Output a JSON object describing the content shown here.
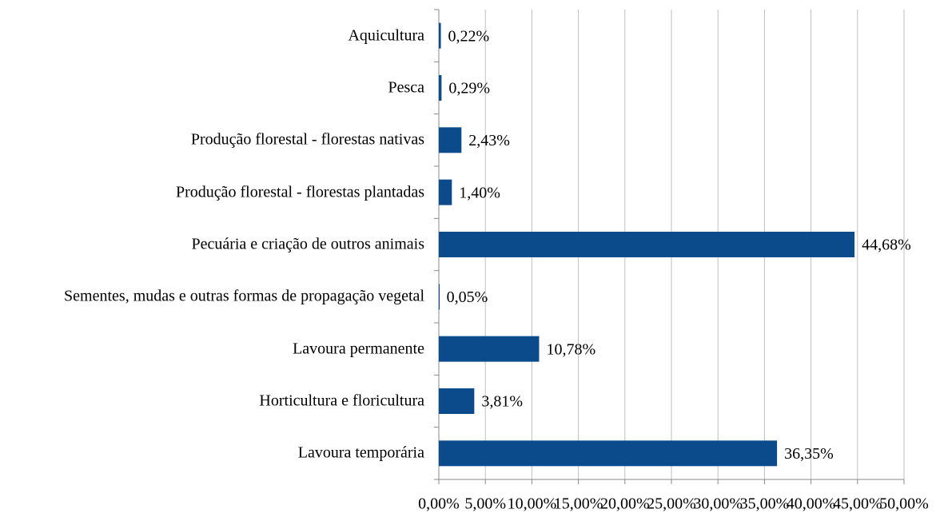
{
  "chart_data": {
    "type": "bar",
    "orientation": "horizontal",
    "categories": [
      "Aquicultura",
      "Pesca",
      "Produção florestal - florestas nativas",
      "Produção florestal - florestas plantadas",
      "Pecuária e criação de outros animais",
      "Sementes, mudas e outras formas de propagação vegetal",
      "Lavoura permanente",
      "Horticultura e floricultura",
      "Lavoura temporária"
    ],
    "values": [
      0.22,
      0.29,
      2.43,
      1.4,
      44.68,
      0.05,
      10.78,
      3.81,
      36.35
    ],
    "value_labels": [
      "0,22%",
      "0,29%",
      "2,43%",
      "1,40%",
      "44,68%",
      "0,05%",
      "10,78%",
      "3,81%",
      "36,35%"
    ],
    "color": "#0b4a8b",
    "xlim": [
      0,
      50
    ],
    "xticks": [
      {
        "value": 0,
        "label": "0,00%"
      },
      {
        "value": 5,
        "label": "5,00%"
      },
      {
        "value": 10,
        "label": "10,00%"
      },
      {
        "value": 15,
        "label": "15,00%"
      },
      {
        "value": 20,
        "label": "20,00%"
      },
      {
        "value": 25,
        "label": "25,00%"
      },
      {
        "value": 30,
        "label": "30,00%"
      },
      {
        "value": 35,
        "label": "35,00%"
      },
      {
        "value": 40,
        "label": "40,00%"
      },
      {
        "value": 45,
        "label": "45,00%"
      },
      {
        "value": 50,
        "label": "50,00%"
      }
    ],
    "grid": true
  }
}
